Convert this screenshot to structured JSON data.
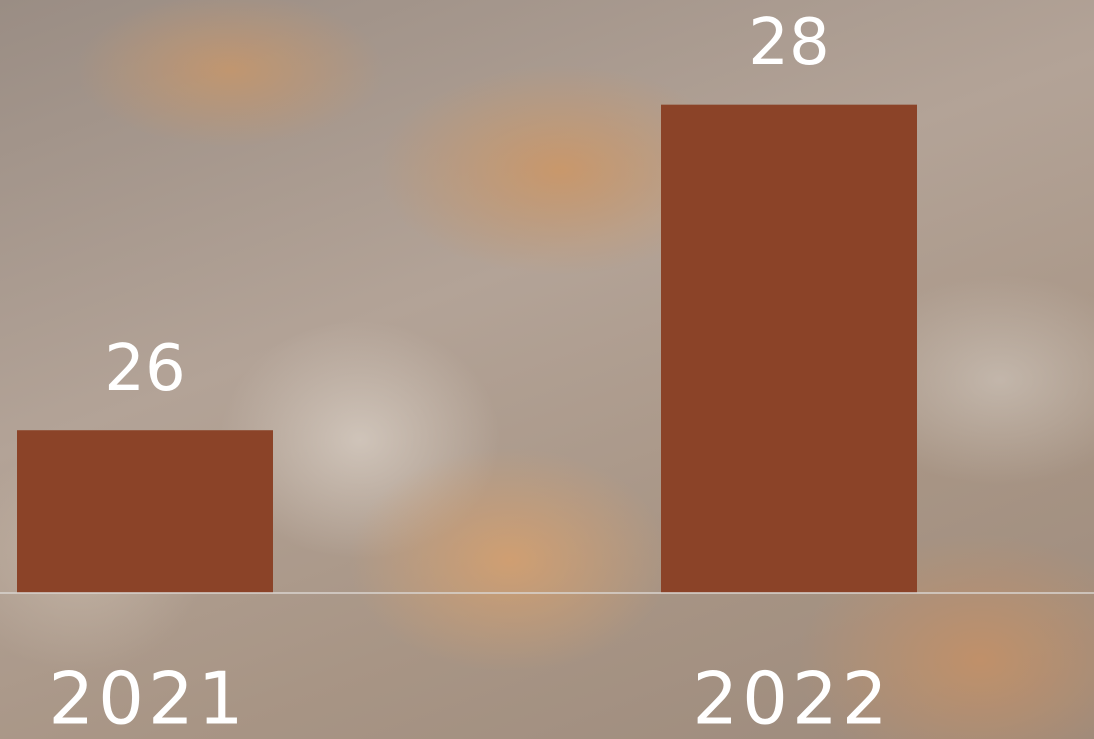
{
  "chart_data": {
    "type": "bar",
    "categories": [
      "2021",
      "2022"
    ],
    "values": [
      26,
      28
    ],
    "color": "#8b4328",
    "ylim": [
      25,
      28.6
    ]
  }
}
